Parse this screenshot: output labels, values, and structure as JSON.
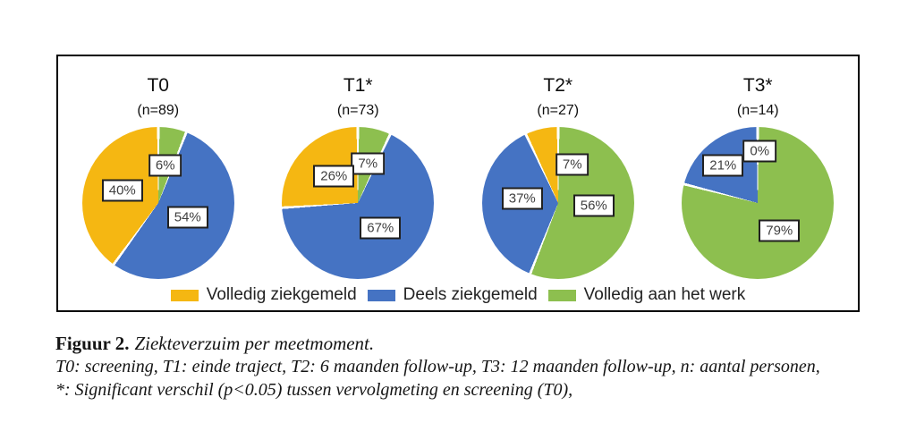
{
  "chart_data": {
    "type": "pie",
    "title": "Ziekteverzuim per meetmoment",
    "legend_position": "bottom",
    "categories": [
      "Volledig ziekgemeld",
      "Deels ziekgemeld",
      "Volledig aan het werk"
    ],
    "pies": [
      {
        "title": "T0",
        "n_label": "(n=89)",
        "slices_clockwise_from_top": [
          {
            "category": "Volledig aan het werk",
            "value": 6,
            "label": "6%"
          },
          {
            "category": "Deels ziekgemeld",
            "value": 54,
            "label": "54%"
          },
          {
            "category": "Volledig ziekgemeld",
            "value": 40,
            "label": "40%"
          }
        ]
      },
      {
        "title": "T1*",
        "n_label": "(n=73)",
        "slices_clockwise_from_top": [
          {
            "category": "Volledig aan het werk",
            "value": 7,
            "label": "7%"
          },
          {
            "category": "Deels ziekgemeld",
            "value": 67,
            "label": "67%"
          },
          {
            "category": "Volledig ziekgemeld",
            "value": 26,
            "label": "26%"
          }
        ]
      },
      {
        "title": "T2*",
        "n_label": "(n=27)",
        "slices_clockwise_from_top": [
          {
            "category": "Volledig aan het werk",
            "value": 56,
            "label": "56%"
          },
          {
            "category": "Deels ziekgemeld",
            "value": 37,
            "label": "37%"
          },
          {
            "category": "Volledig ziekgemeld",
            "value": 7,
            "label": "7%"
          }
        ]
      },
      {
        "title": "T3*",
        "n_label": "(n=14)",
        "slices_clockwise_from_top": [
          {
            "category": "Volledig aan het werk",
            "value": 79,
            "label": "79%"
          },
          {
            "category": "Deels ziekgemeld",
            "value": 21,
            "label": "21%"
          },
          {
            "category": "Volledig ziekgemeld",
            "value": 0,
            "label": "0%"
          }
        ]
      }
    ]
  },
  "colors": {
    "Volledig ziekgemeld": "#F5B712",
    "Deels ziekgemeld": "#4573C3",
    "Volledig aan het werk": "#8DBF4F",
    "slice_separator": "#FFFFFF",
    "label_box_border": "#1F1F1F",
    "label_text": "#3F3F3F",
    "frame_border": "#000000"
  },
  "legend": {
    "items": [
      {
        "label": "Volledig ziekgemeld"
      },
      {
        "label": "Deels ziekgemeld"
      },
      {
        "label": "Volledig aan het werk"
      }
    ]
  },
  "caption": {
    "label": "Figuur 2.",
    "title": "Ziekteverzuim per meetmoment.",
    "line2": "T0: screening, T1: einde traject, T2: 6 maanden follow-up, T3: 12 maanden follow-up, n: aantal personen,",
    "line3": "*: Significant verschil (p<0.05) tussen vervolgmeting en screening (T0),"
  }
}
